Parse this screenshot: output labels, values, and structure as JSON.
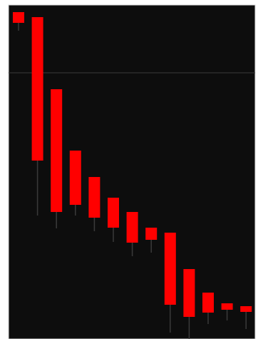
{
  "chart_data": {
    "type": "candlestick",
    "title": "",
    "xlabel": "",
    "ylabel": "",
    "ylim": [
      0,
      475
    ],
    "grid": false,
    "reference_line": {
      "y": 373
    },
    "candles": [
      {
        "open": 458,
        "close": 443,
        "high": 458,
        "low": 432
      },
      {
        "open": 451,
        "close": 250,
        "high": 451,
        "low": 173
      },
      {
        "open": 350,
        "close": 178,
        "high": 350,
        "low": 155
      },
      {
        "open": 264,
        "close": 188,
        "high": 264,
        "low": 173
      },
      {
        "open": 227,
        "close": 170,
        "high": 227,
        "low": 151
      },
      {
        "open": 198,
        "close": 156,
        "high": 198,
        "low": 136
      },
      {
        "open": 178,
        "close": 135,
        "high": 178,
        "low": 116
      },
      {
        "open": 156,
        "close": 139,
        "high": 156,
        "low": 121
      },
      {
        "open": 149,
        "close": 48,
        "high": 149,
        "low": 9
      },
      {
        "open": 98,
        "close": 31,
        "high": 98,
        "low": 0
      },
      {
        "open": 65,
        "close": 37,
        "high": 65,
        "low": 21
      },
      {
        "open": 50,
        "close": 41,
        "high": 50,
        "low": 26
      },
      {
        "open": 46,
        "close": 38,
        "high": 46,
        "low": 14
      }
    ],
    "colors": {
      "background": "#0d0d0d",
      "candle": "#ff0000",
      "wick": "#3a3a3a",
      "reference_line": "#3a3a3a",
      "border": "#d9d9d9"
    }
  }
}
